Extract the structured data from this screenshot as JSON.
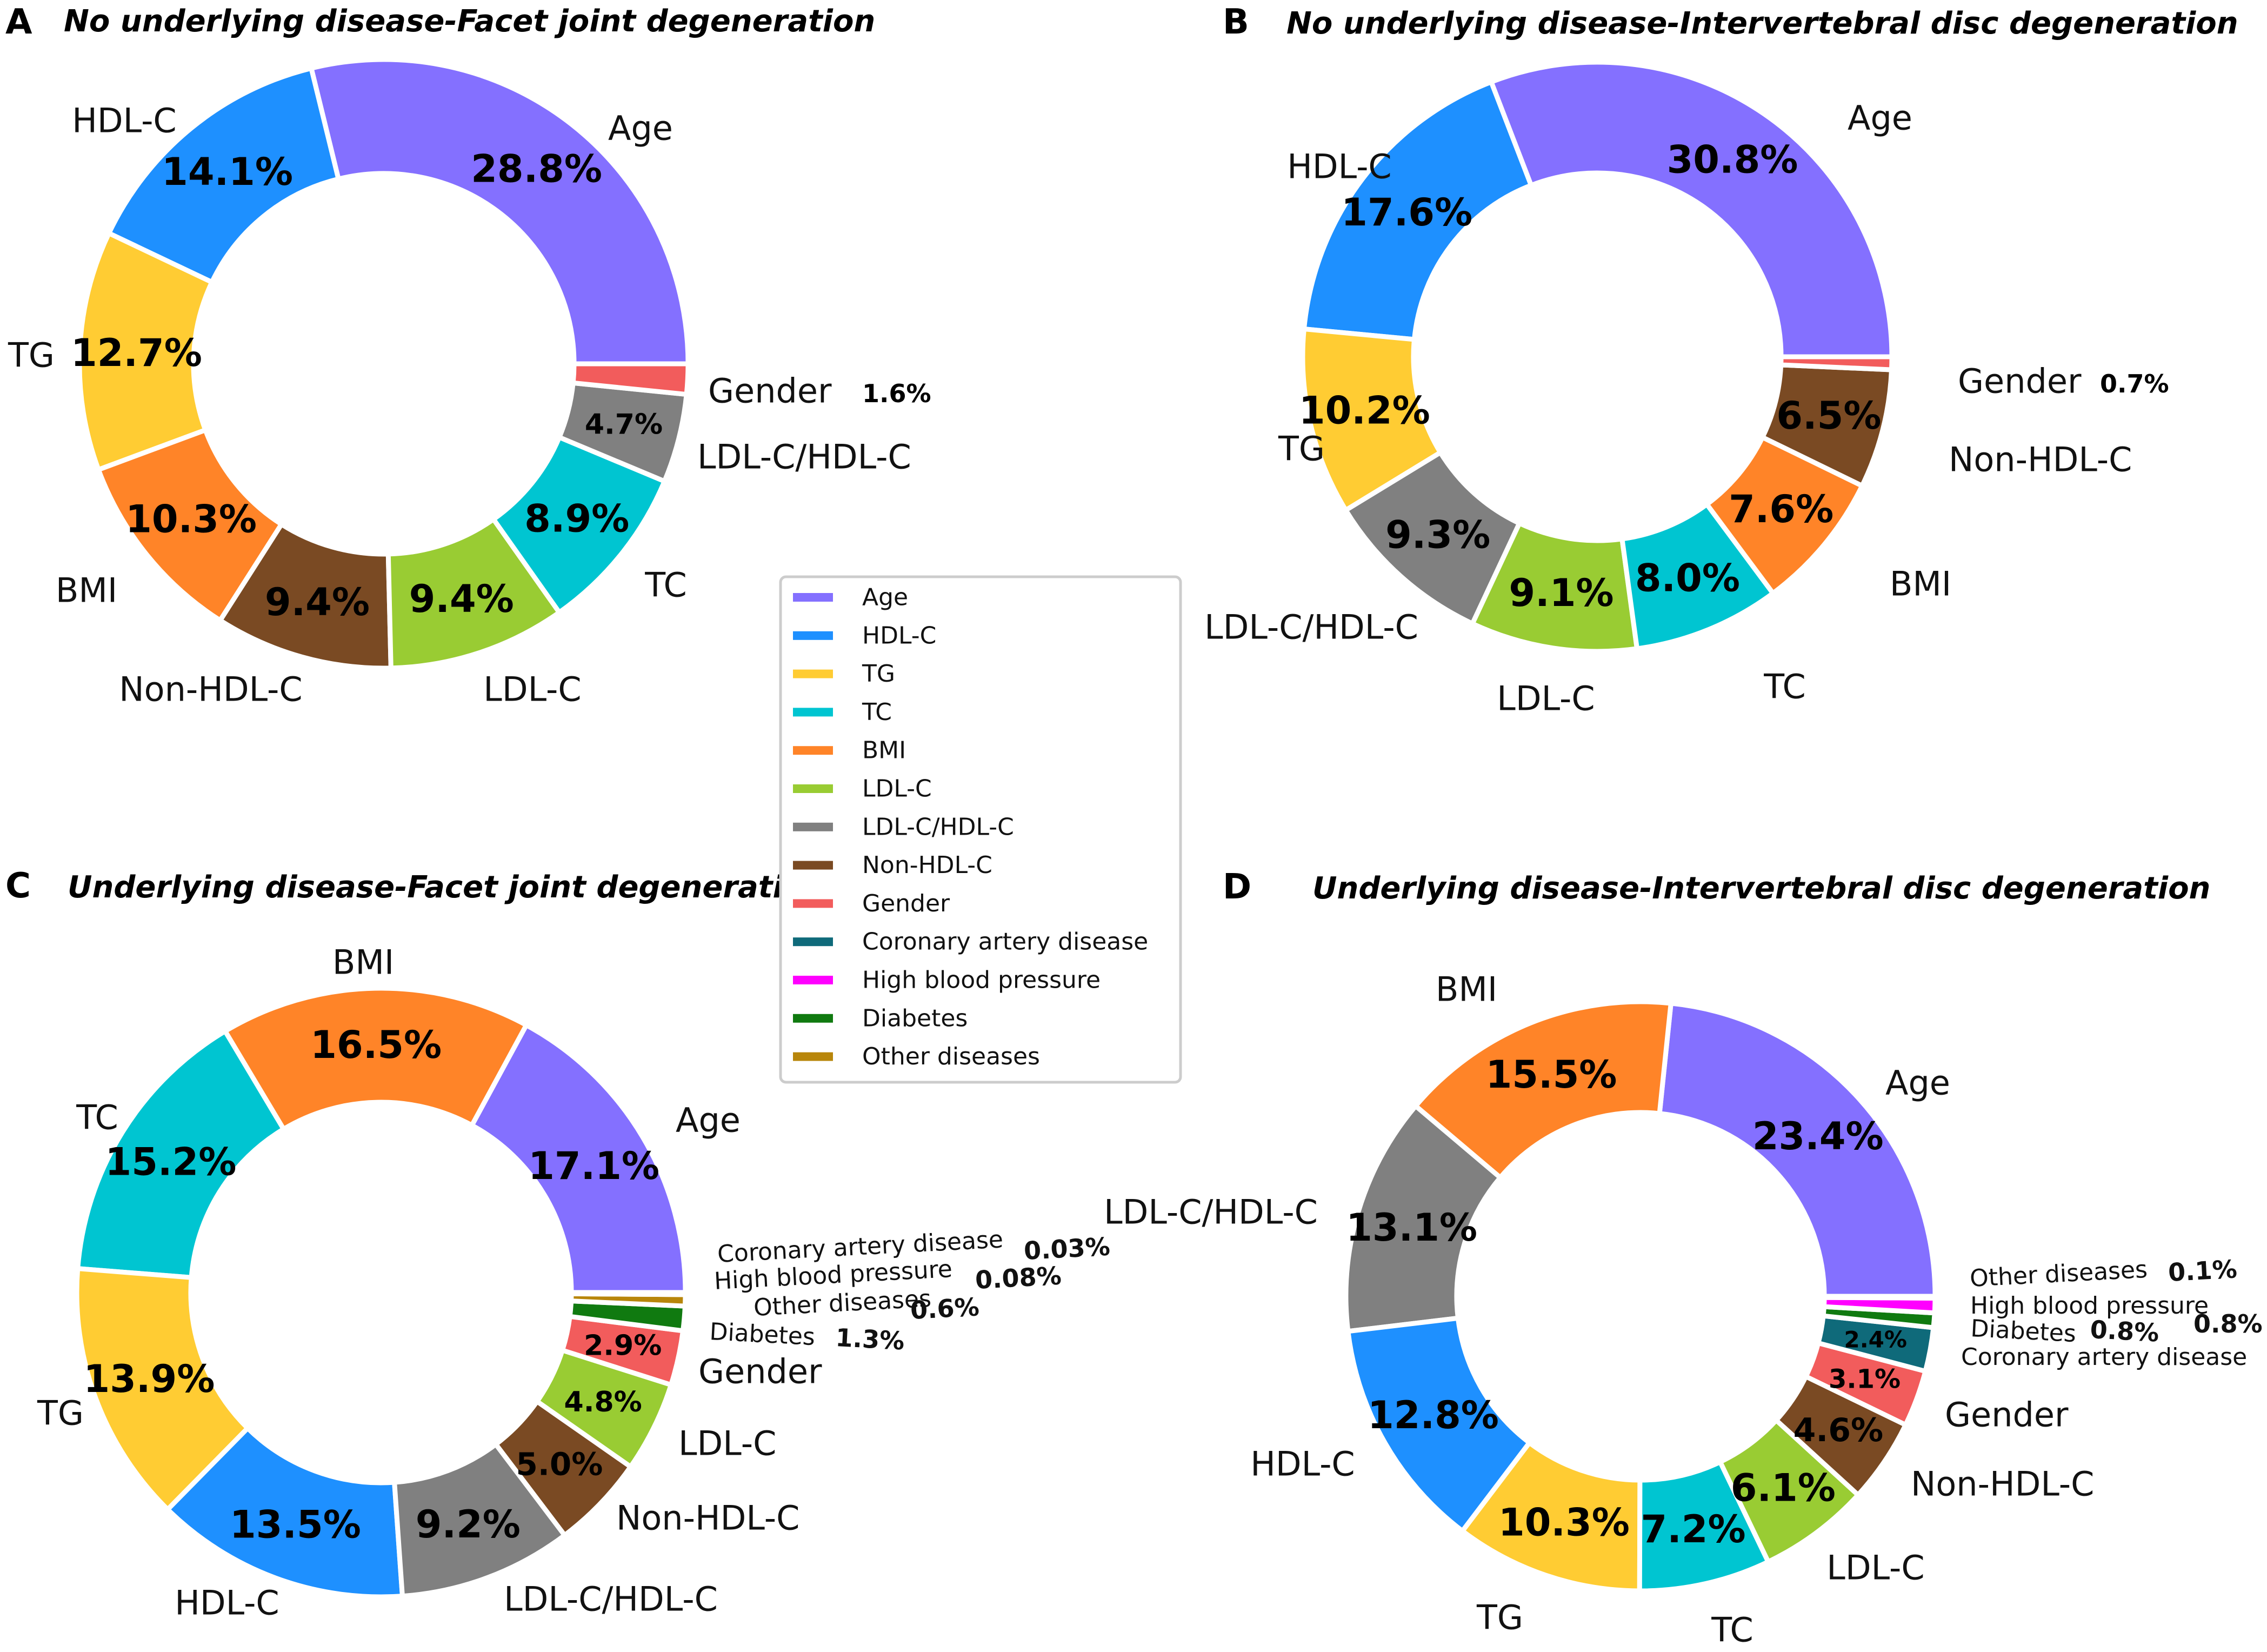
{
  "colors": {
    "Age": "#8470ff",
    "HDL-C": "#1e90ff",
    "TG": "#ffcc33",
    "TC": "#00c5d1",
    "BMI": "#ff8428",
    "LDL-C": "#99cc33",
    "LDL-C/HDL-C": "#808080",
    "Non-HDL-C": "#7a4a23",
    "Gender": "#f25c5c",
    "Coronary artery disease": "#0f6a7a",
    "High blood pressure": "#ff00ff",
    "Diabetes": "#107a10",
    "Other diseases": "#b8860b"
  },
  "legend": {
    "entries": [
      "Age",
      "HDL-C",
      "TG",
      "TC",
      "BMI",
      "LDL-C",
      "LDL-C/HDL-C",
      "Non-HDL-C",
      "Gender",
      "Coronary artery disease",
      "High blood pressure",
      "Diabetes",
      "Other diseases"
    ]
  },
  "chart_data": [
    {
      "type": "pie",
      "panel": "A",
      "title": "No underlying disease-Facet joint degeneration",
      "slices": [
        {
          "label": "Age",
          "value": 28.8,
          "pct": "28.8%"
        },
        {
          "label": "HDL-C",
          "value": 14.1,
          "pct": "14.1%"
        },
        {
          "label": "TG",
          "value": 12.7,
          "pct": "12.7%"
        },
        {
          "label": "BMI",
          "value": 10.3,
          "pct": "10.3%"
        },
        {
          "label": "Non-HDL-C",
          "value": 9.4,
          "pct": "9.4%"
        },
        {
          "label": "LDL-C",
          "value": 9.4,
          "pct": "9.4%"
        },
        {
          "label": "TC",
          "value": 8.9,
          "pct": "8.9%"
        },
        {
          "label": "LDL-C/HDL-C",
          "value": 4.7,
          "pct": "4.7%"
        },
        {
          "label": "Gender",
          "value": 1.6,
          "pct": "1.6%"
        }
      ]
    },
    {
      "type": "pie",
      "panel": "B",
      "title": "No underlying disease-Intervertebral disc degeneration",
      "slices": [
        {
          "label": "Age",
          "value": 30.8,
          "pct": "30.8%"
        },
        {
          "label": "HDL-C",
          "value": 17.6,
          "pct": "17.6%"
        },
        {
          "label": "TG",
          "value": 10.2,
          "pct": "10.2%"
        },
        {
          "label": "LDL-C/HDL-C",
          "value": 9.3,
          "pct": "9.3%"
        },
        {
          "label": "LDL-C",
          "value": 9.1,
          "pct": "9.1%"
        },
        {
          "label": "TC",
          "value": 8.0,
          "pct": "8.0%"
        },
        {
          "label": "BMI",
          "value": 7.6,
          "pct": "7.6%"
        },
        {
          "label": "Non-HDL-C",
          "value": 6.5,
          "pct": "6.5%"
        },
        {
          "label": "Gender",
          "value": 0.7,
          "pct": "0.7%"
        }
      ]
    },
    {
      "type": "pie",
      "panel": "C",
      "title": "Underlying disease-Facet joint degeneration",
      "slices": [
        {
          "label": "Age",
          "value": 17.1,
          "pct": "17.1%"
        },
        {
          "label": "BMI",
          "value": 16.5,
          "pct": "16.5%"
        },
        {
          "label": "TC",
          "value": 15.2,
          "pct": "15.2%"
        },
        {
          "label": "TG",
          "value": 13.9,
          "pct": "13.9%"
        },
        {
          "label": "HDL-C",
          "value": 13.5,
          "pct": "13.5%"
        },
        {
          "label": "LDL-C/HDL-C",
          "value": 9.2,
          "pct": "9.2%"
        },
        {
          "label": "Non-HDL-C",
          "value": 5.0,
          "pct": "5.0%"
        },
        {
          "label": "LDL-C",
          "value": 4.8,
          "pct": "4.8%"
        },
        {
          "label": "Gender",
          "value": 2.9,
          "pct": "2.9%"
        },
        {
          "label": "Diabetes",
          "value": 1.3,
          "pct": "1.3%"
        },
        {
          "label": "Other diseases",
          "value": 0.6,
          "pct": "0.6%"
        },
        {
          "label": "High blood pressure",
          "value": 0.08,
          "pct": "0.08%"
        },
        {
          "label": "Coronary artery disease",
          "value": 0.03,
          "pct": "0.03%"
        }
      ]
    },
    {
      "type": "pie",
      "panel": "D",
      "title": "Underlying disease-Intervertebral disc degeneration",
      "slices": [
        {
          "label": "Age",
          "value": 23.4,
          "pct": "23.4%"
        },
        {
          "label": "BMI",
          "value": 15.5,
          "pct": "15.5%"
        },
        {
          "label": "LDL-C/HDL-C",
          "value": 13.1,
          "pct": "13.1%"
        },
        {
          "label": "HDL-C",
          "value": 12.8,
          "pct": "12.8%"
        },
        {
          "label": "TG",
          "value": 10.3,
          "pct": "10.3%"
        },
        {
          "label": "TC",
          "value": 7.2,
          "pct": "7.2%"
        },
        {
          "label": "LDL-C",
          "value": 6.1,
          "pct": "6.1%"
        },
        {
          "label": "Non-HDL-C",
          "value": 4.6,
          "pct": "4.6%"
        },
        {
          "label": "Gender",
          "value": 3.1,
          "pct": "3.1%"
        },
        {
          "label": "Coronary artery disease",
          "value": 2.4,
          "pct": "2.4%"
        },
        {
          "label": "Diabetes",
          "value": 0.8,
          "pct": "0.8%"
        },
        {
          "label": "High blood pressure",
          "value": 0.8,
          "pct": "0.8%"
        },
        {
          "label": "Other diseases",
          "value": 0.1,
          "pct": "0.1%"
        }
      ]
    }
  ]
}
